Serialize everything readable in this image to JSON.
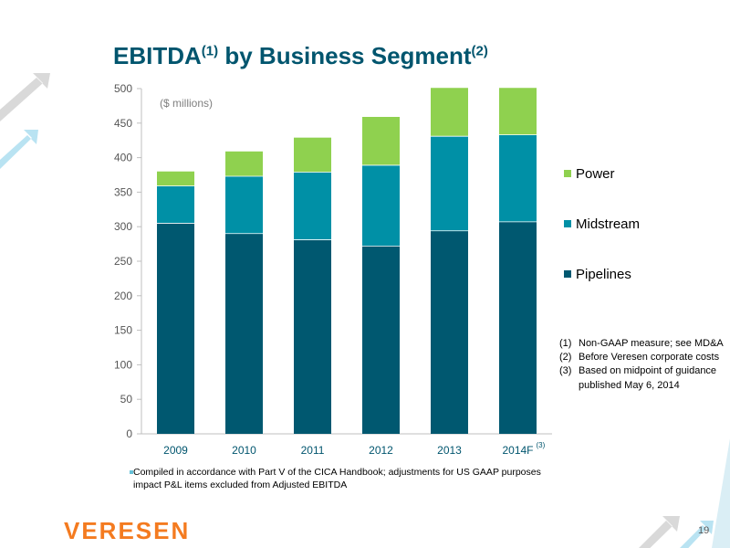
{
  "slide": {
    "title_main": "EBITDA",
    "title_sup1": "(1)",
    "title_rest": " by Business Segment",
    "title_sup2": "(2)",
    "page_number": "19",
    "logo_text": "VERESEN",
    "footnotes": [
      {
        "num": "(1)",
        "text": "Non-GAAP measure; see MD&A"
      },
      {
        "num": "(2)",
        "text": "Before Veresen corporate costs"
      },
      {
        "num": "(3)",
        "text": "Based on midpoint of guidance published May 6, 2014"
      }
    ],
    "bullet_note": "Compiled in accordance with Part V of the CICA Handbook; adjustments for US GAAP purposes impact P&L items excluded from Adjusted EBITDA"
  },
  "chart_data": {
    "type": "bar",
    "stacked": true,
    "units_label": "($ millions)",
    "categories": [
      "2009",
      "2010",
      "2011",
      "2012",
      "2013",
      "2014F"
    ],
    "category_superscripts": [
      "",
      "",
      "",
      "",
      "",
      "(3)"
    ],
    "series": [
      {
        "name": "Pipelines",
        "color": "#005870",
        "values": [
          305,
          290,
          281,
          272,
          294,
          307
        ]
      },
      {
        "name": "Midstream",
        "color": "#0090a6",
        "values": [
          54,
          83,
          98,
          117,
          137,
          126
        ]
      },
      {
        "name": "Power",
        "color": "#8fd14f",
        "values": [
          21,
          36,
          50,
          70,
          70,
          68
        ]
      }
    ],
    "legend_order": [
      "Power",
      "Midstream",
      "Pipelines"
    ],
    "ylim": [
      0,
      500
    ],
    "yticks": [
      0,
      50,
      100,
      150,
      200,
      250,
      300,
      350,
      400,
      450,
      500
    ],
    "legend_position": "right",
    "grid": false
  }
}
